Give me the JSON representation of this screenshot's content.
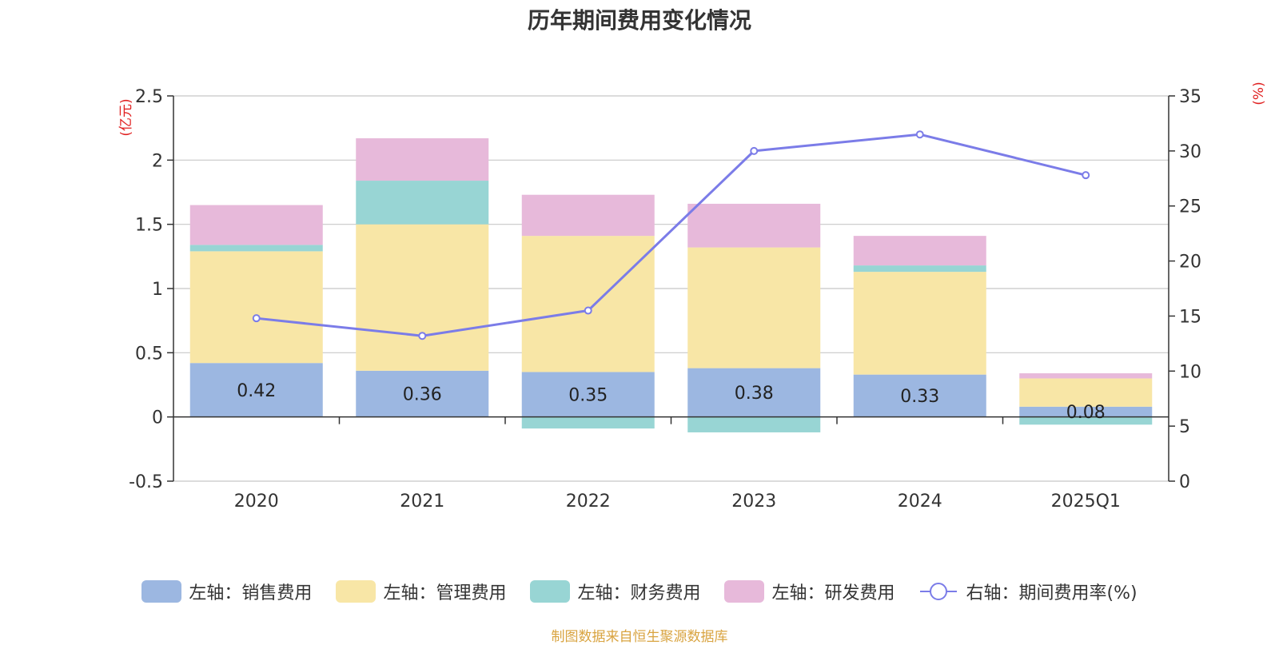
{
  "chart_data": {
    "type": "bar",
    "title": "历年期间费用变化情况",
    "categories": [
      "2020",
      "2021",
      "2022",
      "2023",
      "2024",
      "2025Q1"
    ],
    "left_axis": {
      "unit_label": "(亿元)",
      "ylim": [
        -0.5,
        2.5
      ],
      "ticks": [
        "-0.5",
        "0",
        "0.5",
        "1",
        "1.5",
        "2",
        "2.5"
      ]
    },
    "right_axis": {
      "unit_label": "(%)",
      "ylim": [
        0,
        35
      ],
      "ticks": [
        "0",
        "5",
        "10",
        "15",
        "20",
        "25",
        "30",
        "35"
      ]
    },
    "series": [
      {
        "name": "左轴：销售费用",
        "type": "bar-stacked",
        "axis": "left",
        "color": "#9cb7e1",
        "values": [
          0.42,
          0.36,
          0.35,
          0.38,
          0.33,
          0.08
        ],
        "labels": [
          "0.42",
          "0.36",
          "0.35",
          "0.38",
          "0.33",
          "0.08"
        ]
      },
      {
        "name": "左轴：管理费用",
        "type": "bar-stacked",
        "axis": "left",
        "color": "#f8e6a6",
        "values": [
          0.87,
          1.14,
          1.06,
          0.94,
          0.8,
          0.22
        ]
      },
      {
        "name": "左轴：财务费用",
        "type": "bar-stacked",
        "axis": "left",
        "color": "#98d5d4",
        "values": [
          0.05,
          0.34,
          -0.09,
          -0.12,
          0.05,
          -0.06
        ]
      },
      {
        "name": "左轴：研发费用",
        "type": "bar-stacked",
        "axis": "left",
        "color": "#e7b9da",
        "values": [
          0.31,
          0.33,
          0.32,
          0.34,
          0.23,
          0.04
        ]
      },
      {
        "name": "右轴：期间费用率(%)",
        "type": "line",
        "axis": "right",
        "color": "#7b7ce8",
        "values": [
          14.8,
          13.2,
          15.5,
          30.0,
          31.5,
          27.8
        ]
      }
    ],
    "legend_position": "bottom",
    "grid": true
  },
  "source_text": "制图数据来自恒生聚源数据库"
}
